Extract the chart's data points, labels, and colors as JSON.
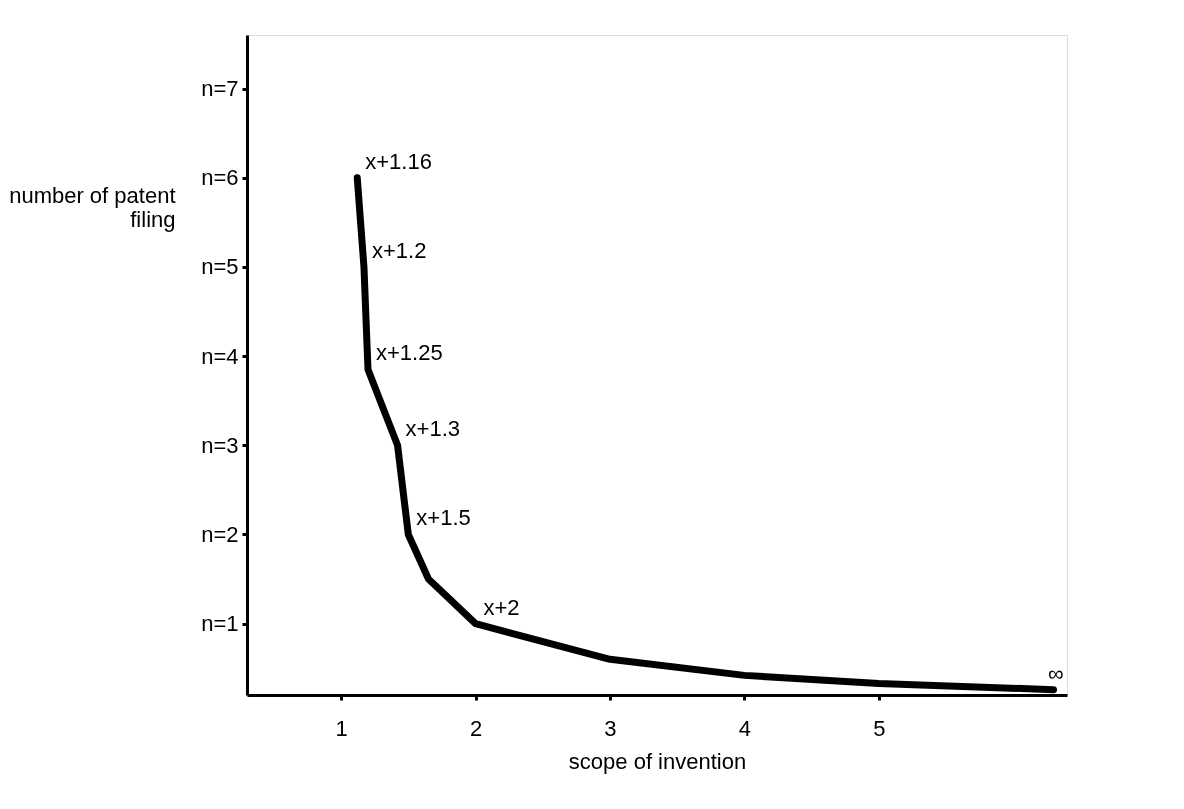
{
  "chart_data": {
    "type": "line",
    "xlabel": "scope of invention",
    "ylabel": "number of patent filing",
    "x": [
      1.12,
      1.17,
      1.2,
      1.42,
      1.5,
      1.65,
      2.0,
      3.0,
      4.0,
      5.0,
      6.3
    ],
    "series": [
      {
        "color": "#000000",
        "values": [
          6,
          5,
          3.85,
          3,
          2,
          1.5,
          1,
          0.6,
          0.42,
          0.33,
          0.26
        ]
      }
    ],
    "xlim": [
      0.3,
      6.4
    ],
    "xticks": [
      1,
      2,
      3,
      4,
      5
    ],
    "ylim": [
      0.2,
      7.6
    ],
    "yticks": [
      {
        "value": 1,
        "label": "n=1"
      },
      {
        "value": 2,
        "label": "n=2"
      },
      {
        "value": 3,
        "label": "n=3"
      },
      {
        "value": 4,
        "label": "n=4"
      },
      {
        "value": 5,
        "label": "n=5"
      },
      {
        "value": 6,
        "label": "n=6"
      },
      {
        "value": 7,
        "label": "n=7"
      }
    ],
    "annotations": [
      {
        "text": "x+1.16",
        "x": 1.12,
        "y": 6
      },
      {
        "text": "x+1.2",
        "x": 1.17,
        "y": 5
      },
      {
        "text": "x+1.25",
        "x": 1.2,
        "y": 3.85
      },
      {
        "text": "x+1.3",
        "x": 1.42,
        "y": 3
      },
      {
        "text": "x+1.5",
        "x": 1.5,
        "y": 2
      },
      {
        "text": "x+2",
        "x": 2.0,
        "y": 1
      },
      {
        "text": "∞",
        "x": 6.2,
        "y": 0.26
      }
    ],
    "grid": false,
    "marker": "none",
    "line_style": "solid"
  }
}
